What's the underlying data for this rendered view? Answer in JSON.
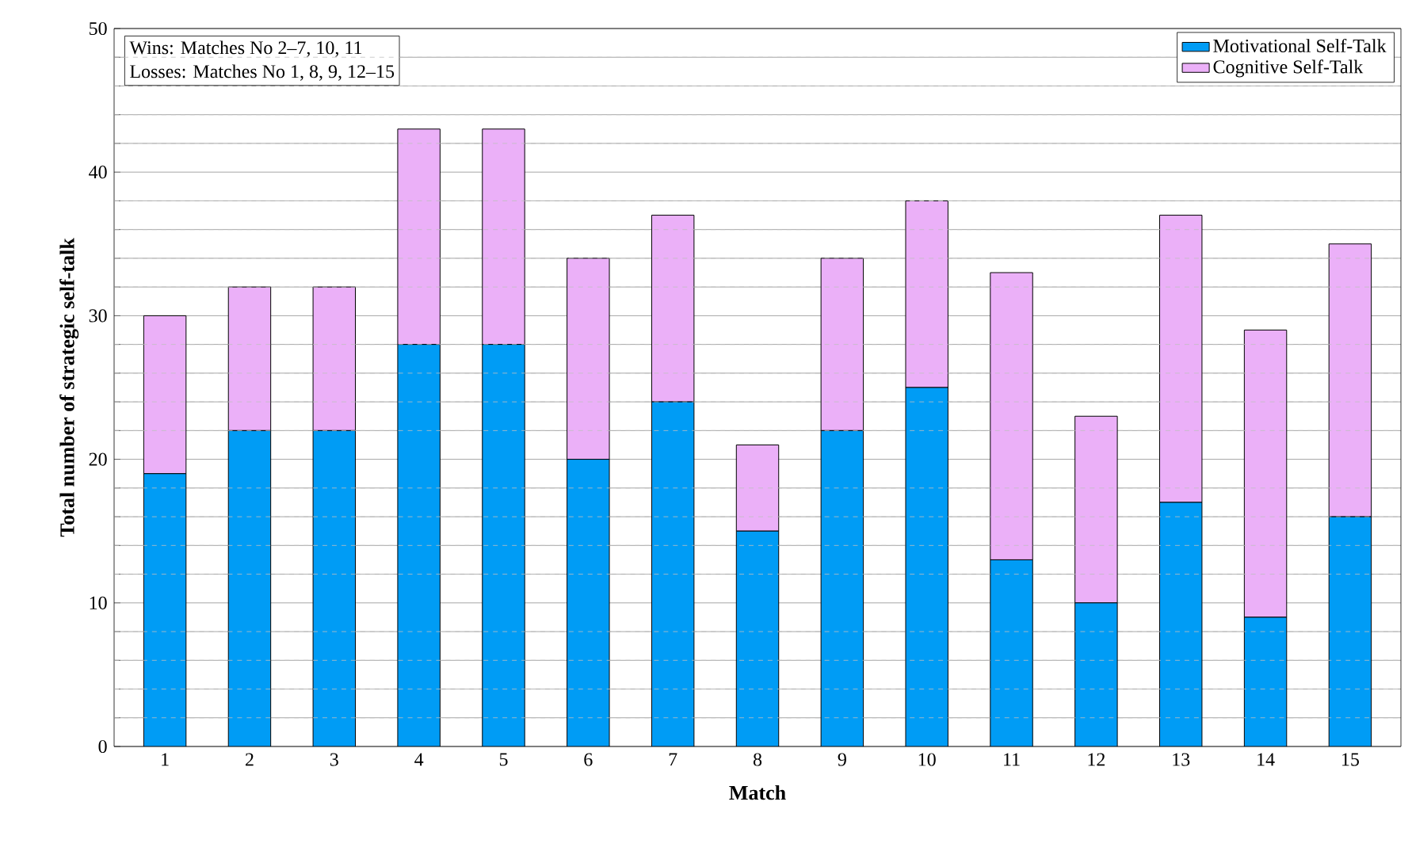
{
  "chart_data": {
    "type": "bar",
    "stacked": true,
    "xlabel": "Match",
    "ylabel": "Total number of strategic self-talk",
    "categories": [
      "1",
      "2",
      "3",
      "4",
      "5",
      "6",
      "7",
      "8",
      "9",
      "10",
      "11",
      "12",
      "13",
      "14",
      "15"
    ],
    "series": [
      {
        "name": "Motivational Self-Talk",
        "color": "#009cf5",
        "values": [
          19,
          22,
          22,
          28,
          28,
          20,
          24,
          15,
          22,
          25,
          13,
          10,
          17,
          9,
          16
        ]
      },
      {
        "name": "Cognitive Self-Talk",
        "color": "#ebb0f8",
        "values": [
          11,
          10,
          10,
          15,
          15,
          14,
          13,
          6,
          12,
          13,
          20,
          13,
          20,
          20,
          19
        ]
      }
    ],
    "ylim": [
      0,
      50
    ],
    "yticks": [
      0,
      {
        "value": 2,
        "label": null
      },
      {
        "value": 4,
        "label": null
      },
      {
        "value": 6,
        "label": null
      },
      {
        "value": 8,
        "label": null
      },
      10,
      {
        "value": 12,
        "label": null
      },
      {
        "value": 14,
        "label": null
      },
      {
        "value": 16,
        "label": null
      },
      {
        "value": 18,
        "label": null
      },
      20,
      {
        "value": 22,
        "label": null
      },
      {
        "value": 24,
        "label": null
      },
      {
        "value": 26,
        "label": null
      },
      {
        "value": 28,
        "label": null
      },
      30,
      {
        "value": 32,
        "label": null
      },
      {
        "value": 34,
        "label": null
      },
      {
        "value": 36,
        "label": null
      },
      {
        "value": 38,
        "label": null
      },
      40,
      {
        "value": 42,
        "label": null
      },
      {
        "value": 44,
        "label": null
      },
      {
        "value": 46,
        "label": null
      },
      {
        "value": 48,
        "label": null
      },
      50
    ],
    "grid": "y",
    "legend": "top right",
    "annotations": [
      "Wins: Matches No 2–7, 10, 11",
      "Losses: Matches No 1, 8, 9, 12–15"
    ]
  }
}
